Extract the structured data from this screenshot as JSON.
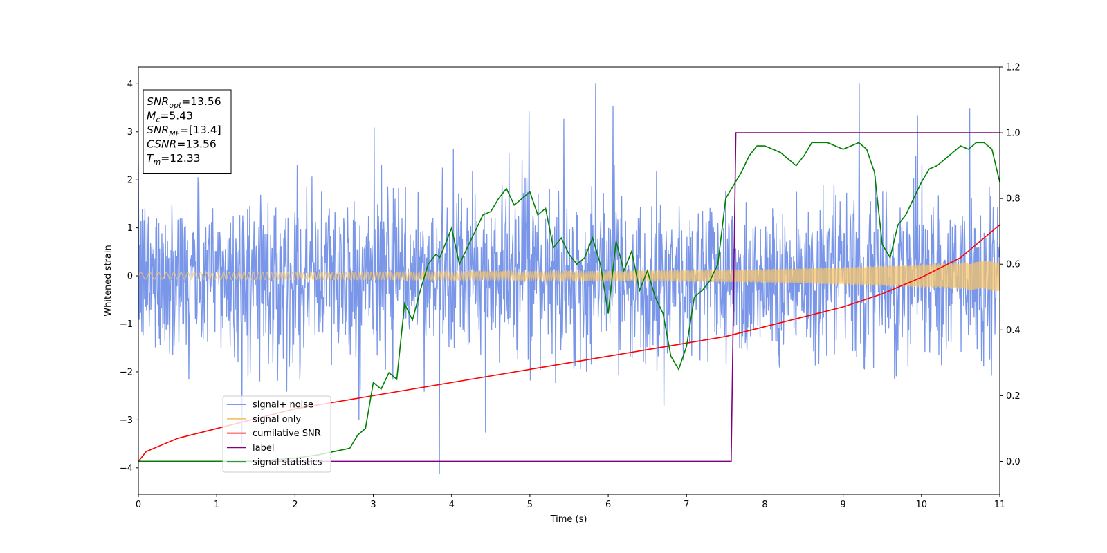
{
  "chart_data": {
    "type": "line",
    "xlabel": "Time (s)",
    "ylabel": "Whitened strain",
    "xlim": [
      0,
      11
    ],
    "ylim": [
      -4.55,
      4.35
    ],
    "y2lim": [
      -0.1,
      1.2
    ],
    "xticks": [
      0,
      1,
      2,
      3,
      4,
      5,
      6,
      7,
      8,
      9,
      10,
      11
    ],
    "yticks": [
      -4,
      -3,
      -2,
      -1,
      0,
      1,
      2,
      3,
      4
    ],
    "y2ticks": [
      0.0,
      0.2,
      0.4,
      0.6,
      0.8,
      1.0,
      1.2
    ],
    "y2tick_labels": [
      "0.0",
      "0.2",
      "0.4",
      "0.6",
      "0.8",
      "1.0",
      "1.2"
    ],
    "grid": false,
    "legend_position": "bottom-left",
    "annotation": {
      "lines": [
        {
          "sym": "SNR",
          "sub": "opt",
          "value": "=13.56"
        },
        {
          "sym": "M",
          "sub": "c",
          "value": "=5.43"
        },
        {
          "sym": "SNR",
          "sub": "MF",
          "value": "=[13.4]"
        },
        {
          "sym": "CSNR",
          "sub": "",
          "value": "=13.56"
        },
        {
          "sym": "T",
          "sub": "m",
          "value": "=12.33"
        }
      ]
    },
    "series": [
      {
        "name": "signal+ noise",
        "axis": "left",
        "color": "#6a8be6",
        "noise_std": 0.85,
        "noise_peak_max": 3.95,
        "noise_peak_min": -4.15,
        "sample_rate_hz": 180
      },
      {
        "name": "signal only",
        "axis": "left",
        "color": "#f5c46c",
        "amplitude_envelope": {
          "x": [
            0,
            3,
            6,
            8,
            9,
            10,
            11
          ],
          "y": [
            0.07,
            0.08,
            0.1,
            0.14,
            0.18,
            0.24,
            0.32
          ]
        }
      },
      {
        "name": "cumilative SNR",
        "axis": "right",
        "color": "#ff0000",
        "x": [
          0,
          0.1,
          0.3,
          0.5,
          1,
          1.5,
          2,
          2.5,
          3,
          3.5,
          4,
          4.5,
          5,
          5.5,
          6,
          6.5,
          7,
          7.5,
          8,
          8.5,
          9,
          9.5,
          10,
          10.5,
          11
        ],
        "y": [
          0.0,
          0.03,
          0.05,
          0.07,
          0.1,
          0.13,
          0.16,
          0.18,
          0.2,
          0.22,
          0.24,
          0.26,
          0.28,
          0.3,
          0.32,
          0.34,
          0.36,
          0.38,
          0.41,
          0.44,
          0.47,
          0.51,
          0.56,
          0.62,
          0.72
        ]
      },
      {
        "name": "label",
        "axis": "right",
        "color": "#800080",
        "x": [
          0,
          7.57,
          7.63,
          11
        ],
        "y": [
          0,
          0,
          1,
          1
        ]
      },
      {
        "name": "signal statistics",
        "axis": "right",
        "color": "#008000",
        "x": [
          0,
          0.5,
          1,
          1.5,
          2,
          2.3,
          2.5,
          2.7,
          2.8,
          2.9,
          3.0,
          3.1,
          3.2,
          3.3,
          3.4,
          3.5,
          3.6,
          3.7,
          3.8,
          3.85,
          3.9,
          4.0,
          4.1,
          4.2,
          4.3,
          4.4,
          4.5,
          4.6,
          4.7,
          4.8,
          4.9,
          5.0,
          5.1,
          5.2,
          5.3,
          5.4,
          5.5,
          5.6,
          5.7,
          5.8,
          5.9,
          6.0,
          6.1,
          6.2,
          6.3,
          6.4,
          6.5,
          6.6,
          6.7,
          6.8,
          6.9,
          7.0,
          7.1,
          7.2,
          7.3,
          7.4,
          7.5,
          7.6,
          7.7,
          7.8,
          7.9,
          8.0,
          8.1,
          8.2,
          8.3,
          8.4,
          8.5,
          8.6,
          8.7,
          8.8,
          8.9,
          9.0,
          9.1,
          9.2,
          9.3,
          9.4,
          9.5,
          9.6,
          9.7,
          9.8,
          9.9,
          10.0,
          10.1,
          10.2,
          10.3,
          10.4,
          10.5,
          10.6,
          10.7,
          10.8,
          10.9,
          11.0
        ],
        "y": [
          0.0,
          0.0,
          0.0,
          0.0,
          0.01,
          0.02,
          0.03,
          0.04,
          0.08,
          0.1,
          0.24,
          0.22,
          0.27,
          0.25,
          0.48,
          0.43,
          0.52,
          0.6,
          0.63,
          0.62,
          0.65,
          0.71,
          0.6,
          0.65,
          0.7,
          0.75,
          0.76,
          0.8,
          0.83,
          0.78,
          0.8,
          0.82,
          0.75,
          0.77,
          0.65,
          0.68,
          0.63,
          0.6,
          0.62,
          0.68,
          0.6,
          0.45,
          0.67,
          0.58,
          0.64,
          0.52,
          0.58,
          0.5,
          0.45,
          0.32,
          0.28,
          0.35,
          0.5,
          0.52,
          0.55,
          0.6,
          0.8,
          0.84,
          0.88,
          0.93,
          0.96,
          0.96,
          0.95,
          0.94,
          0.92,
          0.9,
          0.93,
          0.97,
          0.97,
          0.97,
          0.96,
          0.95,
          0.96,
          0.97,
          0.95,
          0.88,
          0.66,
          0.62,
          0.72,
          0.75,
          0.8,
          0.85,
          0.89,
          0.9,
          0.92,
          0.94,
          0.96,
          0.95,
          0.97,
          0.97,
          0.95,
          0.85
        ]
      }
    ]
  }
}
